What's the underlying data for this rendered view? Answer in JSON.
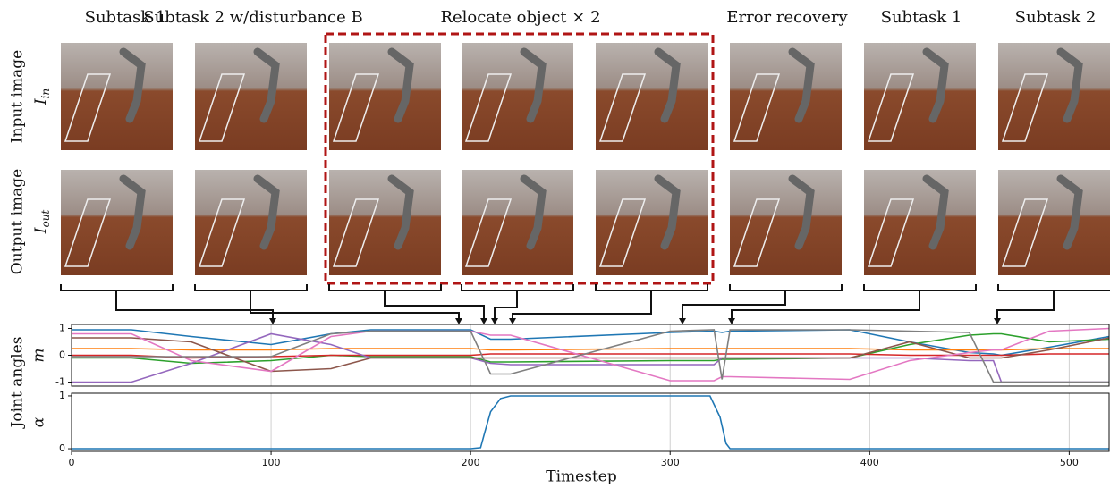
{
  "figure": {
    "column_headers": [
      "Subtask 1",
      "Subtask 2 w/disturbance B",
      "Relocate object × 2",
      "Error recovery",
      "Subtask 1",
      "Subtask 2"
    ],
    "row_labels": [
      {
        "text": "Input image",
        "symbol": "I",
        "subscript": "in"
      },
      {
        "text": "Output image",
        "symbol": "I",
        "subscript": "out"
      }
    ]
  },
  "chart_data": [
    {
      "type": "line",
      "ylabel": "Joint angles",
      "ylabel_symbol": "m",
      "x": [
        0,
        30,
        60,
        100,
        130,
        150,
        200,
        210,
        220,
        300,
        322,
        326,
        330,
        390,
        420,
        450,
        462,
        466,
        490,
        520
      ],
      "xlim": [
        0,
        520
      ],
      "ylim": [
        -1.15,
        1.15
      ],
      "yticks": [
        -1,
        0,
        1
      ],
      "grid": true,
      "series": [
        {
          "color": "#1f77b4",
          "values": [
            0.95,
            0.95,
            0.7,
            0.4,
            0.8,
            0.95,
            0.95,
            0.6,
            0.6,
            0.85,
            0.9,
            0.85,
            0.9,
            0.95,
            0.5,
            0.1,
            0.05,
            0.0,
            0.3,
            0.7
          ]
        },
        {
          "color": "#ff7f0e",
          "values": [
            0.25,
            0.25,
            0.2,
            0.2,
            0.25,
            0.25,
            0.25,
            0.2,
            0.2,
            0.25,
            0.25,
            0.25,
            0.25,
            0.25,
            0.2,
            0.2,
            0.2,
            0.2,
            0.25,
            0.25
          ]
        },
        {
          "color": "#2ca02c",
          "values": [
            -0.1,
            -0.1,
            -0.3,
            -0.2,
            0.0,
            -0.05,
            -0.05,
            -0.25,
            -0.25,
            -0.2,
            -0.2,
            -0.15,
            -0.15,
            -0.1,
            0.4,
            0.75,
            0.8,
            0.8,
            0.5,
            0.6
          ]
        },
        {
          "color": "#d62728",
          "values": [
            0.0,
            0.0,
            -0.1,
            -0.05,
            0.0,
            0.0,
            0.0,
            0.05,
            0.05,
            0.05,
            0.05,
            0.05,
            0.05,
            0.05,
            0.0,
            0.0,
            0.0,
            0.0,
            0.05,
            0.05
          ]
        },
        {
          "color": "#9467bd",
          "values": [
            -1.0,
            -1.0,
            -0.3,
            0.8,
            0.4,
            -0.1,
            -0.1,
            -0.3,
            -0.35,
            -0.35,
            -0.35,
            -0.1,
            -0.1,
            -0.1,
            -0.1,
            -0.2,
            -0.2,
            -1.0,
            -1.0,
            -1.0
          ]
        },
        {
          "color": "#8c564b",
          "values": [
            0.65,
            0.65,
            0.5,
            -0.6,
            -0.5,
            -0.1,
            -0.1,
            -0.1,
            -0.1,
            -0.1,
            -0.1,
            -0.1,
            -0.1,
            -0.1,
            0.5,
            -0.1,
            -0.1,
            -0.1,
            0.2,
            0.65
          ]
        },
        {
          "color": "#e377c2",
          "values": [
            0.8,
            0.8,
            -0.2,
            -0.6,
            0.7,
            0.9,
            0.9,
            0.75,
            0.75,
            -0.95,
            -0.95,
            -0.8,
            -0.8,
            -0.9,
            -0.2,
            0.1,
            0.2,
            0.2,
            0.9,
            1.0
          ]
        },
        {
          "color": "#7f7f7f",
          "values": [
            -0.05,
            -0.05,
            -0.05,
            -0.05,
            0.8,
            0.9,
            0.9,
            -0.7,
            -0.7,
            0.9,
            0.95,
            -0.9,
            0.95,
            0.95,
            0.9,
            0.85,
            -1.0,
            -1.0,
            -1.0,
            -1.0
          ]
        }
      ]
    },
    {
      "type": "line",
      "ylabel_symbol": "α",
      "xlabel": "Timestep",
      "x": [
        0,
        200,
        205,
        207,
        210,
        215,
        220,
        320,
        325,
        328,
        330,
        400,
        520
      ],
      "xlim": [
        0,
        520
      ],
      "ylim": [
        -0.05,
        1.05
      ],
      "xticks": [
        0,
        100,
        200,
        300,
        400,
        500
      ],
      "yticks": [
        0,
        1
      ],
      "grid": true,
      "series": [
        {
          "color": "#1f77b4",
          "values": [
            0.0,
            0.0,
            0.02,
            0.3,
            0.7,
            0.95,
            1.0,
            1.0,
            0.6,
            0.1,
            0.0,
            0.0,
            0.0
          ]
        }
      ]
    }
  ]
}
